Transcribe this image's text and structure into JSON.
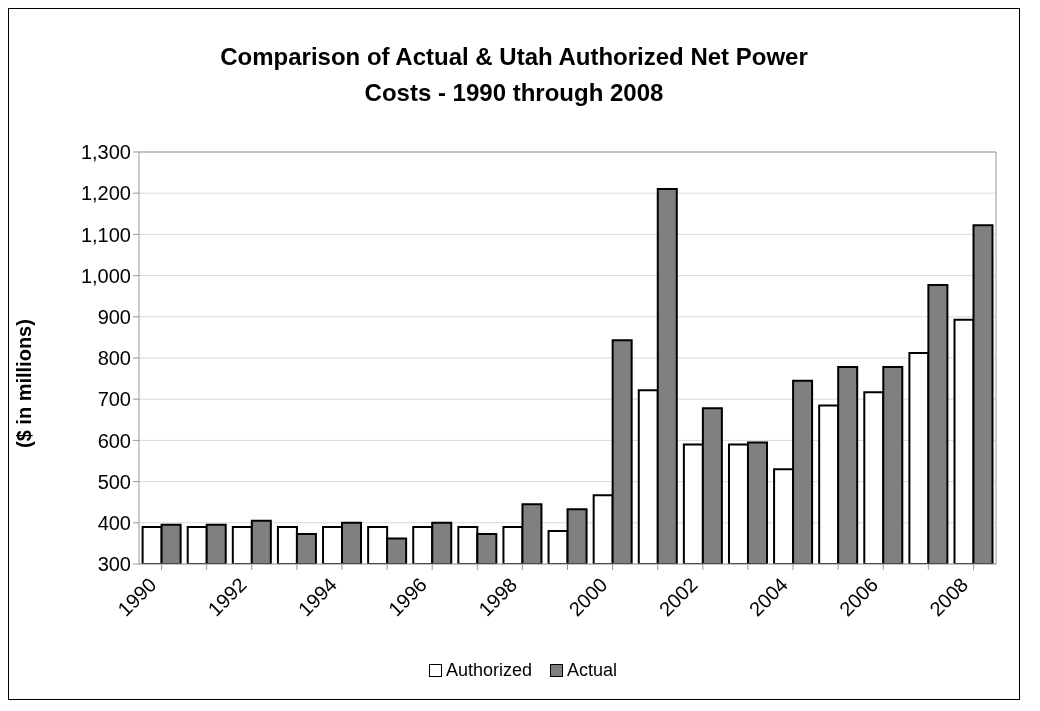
{
  "chart_data": {
    "type": "bar",
    "title": "Comparison of Actual & Utah Authorized Net Power Costs - 1990 through 2008",
    "ylabel": "($ in millions)",
    "categories": [
      "1990",
      null,
      "1992",
      null,
      "1994",
      null,
      "1996",
      null,
      "1998",
      null,
      "2000",
      null,
      "2002",
      null,
      "2004",
      null,
      "2006",
      null,
      "2008"
    ],
    "series": [
      {
        "name": "Authorized",
        "color": "#ffffff",
        "values": [
          390,
          390,
          390,
          390,
          390,
          390,
          390,
          390,
          390,
          380,
          467,
          722,
          590,
          590,
          530,
          685,
          717,
          812,
          893
        ]
      },
      {
        "name": "Actual",
        "color": "#808080",
        "values": [
          395,
          395,
          405,
          373,
          400,
          362,
          400,
          373,
          445,
          433,
          843,
          1210,
          678,
          595,
          745,
          778,
          778,
          977,
          1122
        ]
      }
    ],
    "ylim": [
      300,
      1300
    ],
    "yticks": [
      {
        "value": 300,
        "label": "300"
      },
      {
        "value": 400,
        "label": "400"
      },
      {
        "value": 500,
        "label": "500"
      },
      {
        "value": 600,
        "label": "600"
      },
      {
        "value": 700,
        "label": "700"
      },
      {
        "value": 800,
        "label": "800"
      },
      {
        "value": 900,
        "label": "900"
      },
      {
        "value": 1000,
        "label": "1,000"
      },
      {
        "value": 1100,
        "label": "1,100"
      },
      {
        "value": 1200,
        "label": "1,200"
      },
      {
        "value": 1300,
        "label": "1,300"
      }
    ],
    "grid": "y",
    "legend": "bottom"
  }
}
